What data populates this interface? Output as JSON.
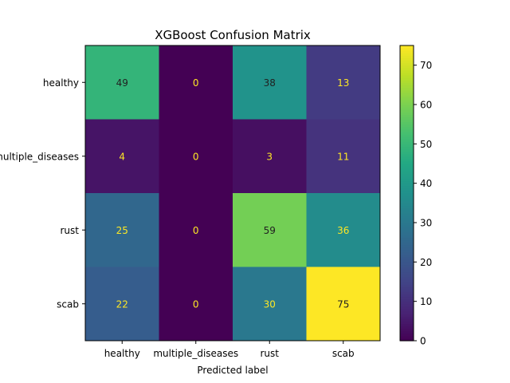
{
  "chart_data": {
    "type": "heatmap",
    "title": "XGBoost Confusion Matrix",
    "xlabel": "Predicted label",
    "ylabel": "",
    "x_categories": [
      "healthy",
      "multiple_diseases",
      "rust",
      "scab"
    ],
    "y_categories": [
      "healthy",
      "multiple_diseases",
      "rust",
      "scab"
    ],
    "values": [
      [
        49,
        0,
        38,
        13
      ],
      [
        4,
        0,
        3,
        11
      ],
      [
        25,
        0,
        59,
        36
      ],
      [
        22,
        0,
        30,
        75
      ]
    ],
    "colormap": "viridis",
    "vmin": 0,
    "vmax": 75,
    "colorbar_ticks": [
      0,
      10,
      20,
      30,
      40,
      50,
      60,
      70
    ],
    "text_dark_color": "#212121",
    "text_light_color": "#fde725"
  }
}
